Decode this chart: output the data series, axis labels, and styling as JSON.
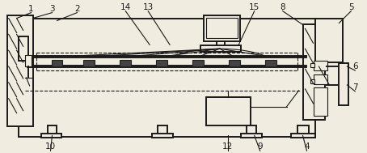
{
  "bg_color": "#f0ece0",
  "line_color": "#1a1a1a",
  "lw_thick": 2.8,
  "lw_medium": 1.4,
  "lw_thin": 0.8,
  "font_size": 7.5
}
